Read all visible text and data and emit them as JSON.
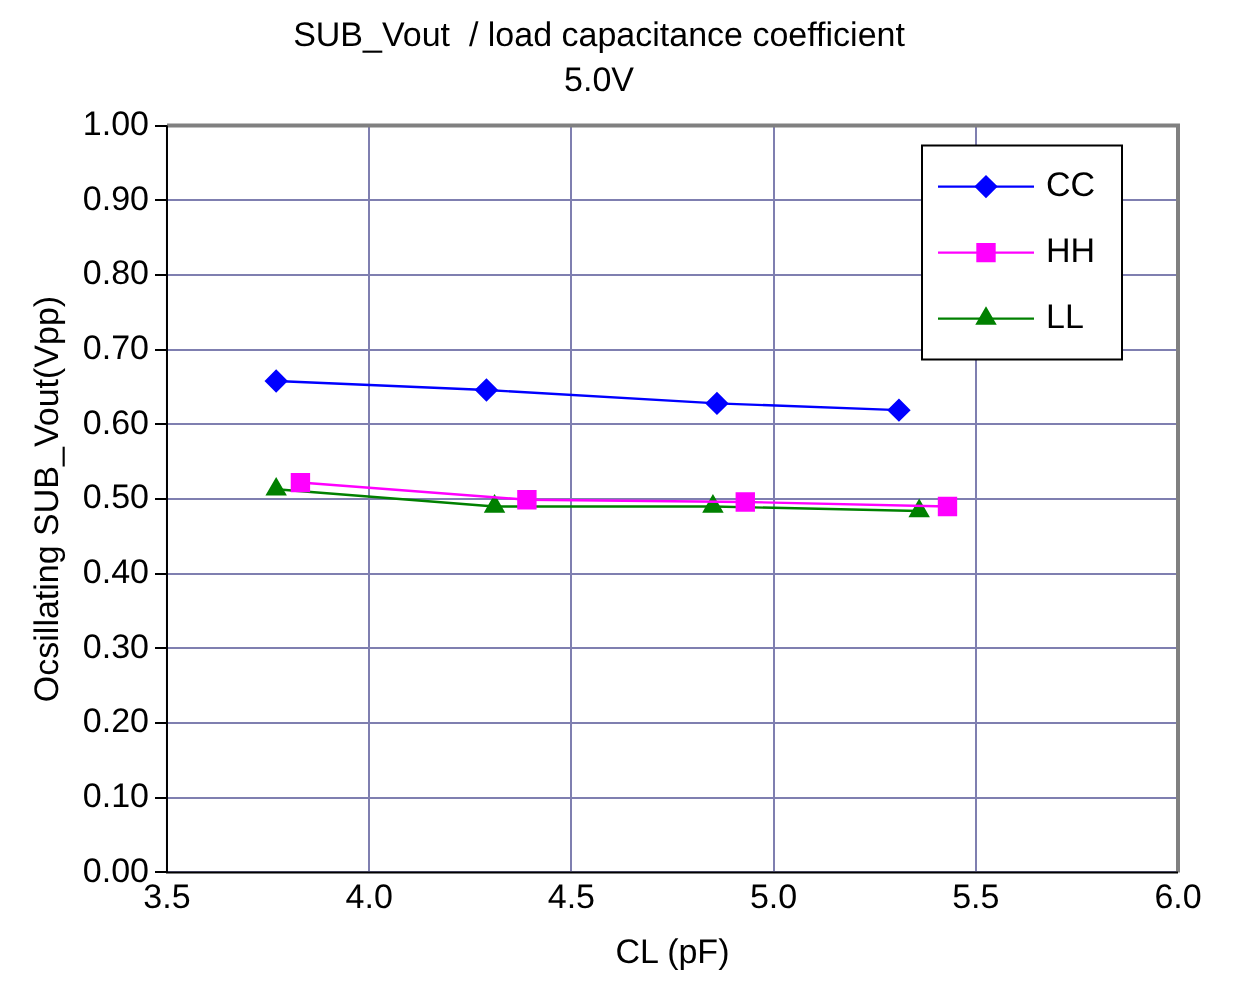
{
  "chart_data": {
    "type": "line",
    "title": "SUB_Vout  / load capacitance coefficient",
    "subtitle": "5.0V",
    "xlabel": "CL (pF)",
    "ylabel": "Ocsillating SUB_Vout(Vpp)",
    "xlim": [
      3.5,
      6.0
    ],
    "xticks": [
      {
        "value": 3.5,
        "label": "3.5"
      },
      {
        "value": 4,
        "label": "4.0"
      },
      {
        "value": 4.5,
        "label": "4.5"
      },
      {
        "value": 5,
        "label": "5.0"
      },
      {
        "value": 5.5,
        "label": "5.5"
      },
      {
        "value": 6,
        "label": "6.0"
      }
    ],
    "ylim": [
      0,
      1
    ],
    "yticks": [
      {
        "value": 0,
        "label": "0.00"
      },
      {
        "value": 0.1,
        "label": "0.10"
      },
      {
        "value": 0.2,
        "label": "0.20"
      },
      {
        "value": 0.3,
        "label": "0.30"
      },
      {
        "value": 0.4,
        "label": "0.40"
      },
      {
        "value": 0.5,
        "label": "0.50"
      },
      {
        "value": 0.6,
        "label": "0.60"
      },
      {
        "value": 0.7,
        "label": "0.70"
      },
      {
        "value": 0.8,
        "label": "0.80"
      },
      {
        "value": 0.9,
        "label": "0.90"
      },
      {
        "value": 1,
        "label": "1.00"
      }
    ],
    "grid": true,
    "legend": "top right",
    "series": [
      {
        "name": "CC",
        "color": "#0000ff",
        "marker": "diamond",
        "x": [
          3.77,
          4.29,
          4.86,
          5.31
        ],
        "values": [
          0.658,
          0.646,
          0.628,
          0.619
        ]
      },
      {
        "name": "HH",
        "color": "#ff00ff",
        "marker": "square",
        "x": [
          3.83,
          4.39,
          4.93,
          5.43
        ],
        "values": [
          0.522,
          0.499,
          0.496,
          0.49
        ]
      },
      {
        "name": "LL",
        "color": "#008000",
        "marker": "triangle",
        "x": [
          3.77,
          4.31,
          4.85,
          5.36
        ],
        "values": [
          0.513,
          0.49,
          0.49,
          0.484
        ]
      }
    ]
  }
}
